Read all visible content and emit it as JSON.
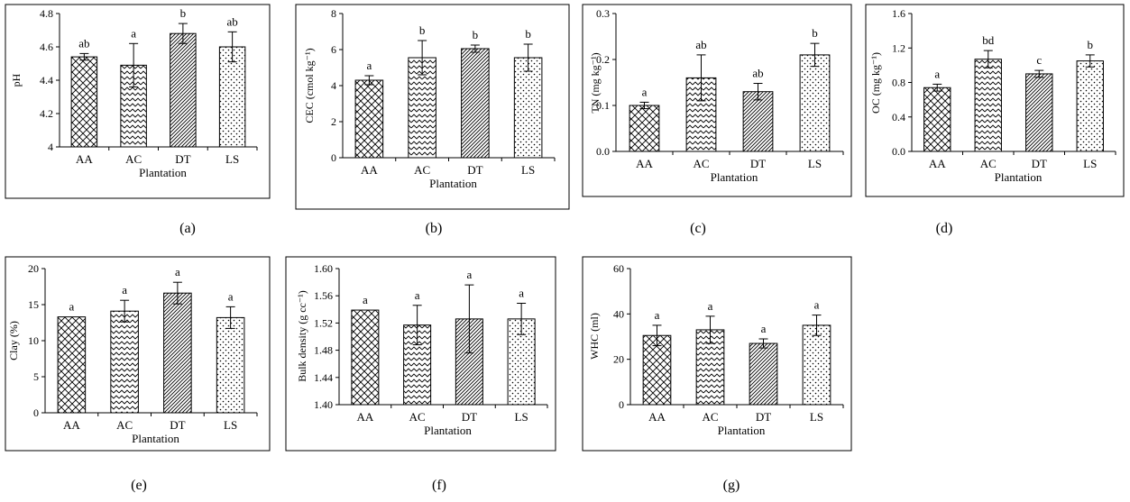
{
  "panel_labels": [
    "(a)",
    "(b)",
    "(c)",
    "(d)",
    "(e)",
    "(f)",
    "(g)"
  ],
  "chart_data": [
    {
      "type": "bar",
      "panel": "(a)",
      "categories": [
        "AA",
        "AC",
        "DT",
        "LS"
      ],
      "values": [
        4.54,
        4.49,
        4.68,
        4.6
      ],
      "errors": [
        0.02,
        0.13,
        0.06,
        0.09
      ],
      "letters": [
        "ab",
        "a",
        "b",
        "ab"
      ],
      "xlabel": "Plantation",
      "ylabel": "pH",
      "ylim": [
        4,
        4.8
      ],
      "yticks": [
        4,
        4.2,
        4.4,
        4.6,
        4.8
      ],
      "ytick_labels": [
        "4",
        "4.2",
        "4.4",
        "4.6",
        "4.8"
      ],
      "patterns": [
        "cross",
        "wave",
        "diag",
        "dots"
      ]
    },
    {
      "type": "bar",
      "panel": "(b)",
      "categories": [
        "AA",
        "AC",
        "DT",
        "LS"
      ],
      "values": [
        4.3,
        5.55,
        6.05,
        5.55
      ],
      "errors": [
        0.25,
        0.95,
        0.2,
        0.75
      ],
      "letters": [
        "a",
        "b",
        "b",
        "b"
      ],
      "xlabel": "Plantation",
      "ylabel": "CEC (cmol kg⁻¹)",
      "ylim": [
        0,
        8
      ],
      "yticks": [
        0,
        2,
        4,
        6,
        8
      ],
      "ytick_labels": [
        "0",
        "2",
        "4",
        "6",
        "8"
      ],
      "patterns": [
        "cross",
        "wave",
        "diag",
        "dots"
      ]
    },
    {
      "type": "bar",
      "panel": "(c)",
      "categories": [
        "AA",
        "AC",
        "DT",
        "LS"
      ],
      "values": [
        0.1,
        0.16,
        0.13,
        0.21
      ],
      "errors": [
        0.007,
        0.05,
        0.018,
        0.025
      ],
      "letters": [
        "a",
        "ab",
        "ab",
        "b"
      ],
      "xlabel": "Plantation",
      "ylabel": "TN (mg kg⁻¹)",
      "ylim": [
        0,
        0.3
      ],
      "yticks": [
        0,
        0.1,
        0.2,
        0.3
      ],
      "ytick_labels": [
        "0.0",
        "0.1",
        "0.2",
        "0.3"
      ],
      "patterns": [
        "cross",
        "wave",
        "diag",
        "dots"
      ]
    },
    {
      "type": "bar",
      "panel": "(d)",
      "categories": [
        "AA",
        "AC",
        "DT",
        "LS"
      ],
      "values": [
        0.74,
        1.07,
        0.9,
        1.05
      ],
      "errors": [
        0.04,
        0.1,
        0.04,
        0.07
      ],
      "letters": [
        "a",
        "bd",
        "c",
        "b"
      ],
      "xlabel": "Plantation",
      "ylabel": "OC (mg kg⁻¹)",
      "ylim": [
        0,
        1.6
      ],
      "yticks": [
        0,
        0.4,
        0.8,
        1.2,
        1.6
      ],
      "ytick_labels": [
        "0.0",
        "0.4",
        "0.8",
        "1.2",
        "1.6"
      ],
      "patterns": [
        "cross",
        "wave",
        "diag",
        "dots"
      ]
    },
    {
      "type": "bar",
      "panel": "(e)",
      "categories": [
        "AA",
        "AC",
        "DT",
        "LS"
      ],
      "values": [
        13.3,
        14.1,
        16.6,
        13.2
      ],
      "errors": [
        0,
        1.5,
        1.5,
        1.5
      ],
      "letters": [
        "a",
        "a",
        "a",
        "a"
      ],
      "xlabel": "Plantation",
      "ylabel": "Clay (%)",
      "ylim": [
        0,
        20
      ],
      "yticks": [
        0,
        5,
        10,
        15,
        20
      ],
      "ytick_labels": [
        "0",
        "5",
        "10",
        "15",
        "20"
      ],
      "patterns": [
        "cross",
        "wave",
        "diag",
        "dots"
      ]
    },
    {
      "type": "bar",
      "panel": "(f)",
      "categories": [
        "AA",
        "AC",
        "DT",
        "LS"
      ],
      "values": [
        1.539,
        1.517,
        1.526,
        1.526
      ],
      "errors": [
        0,
        0.029,
        0.05,
        0.023
      ],
      "letters": [
        "a",
        "a",
        "a",
        "a"
      ],
      "xlabel": "Plantation",
      "ylabel": "Bulk density (g cc⁻¹)",
      "ylim": [
        1.4,
        1.6
      ],
      "yticks": [
        1.4,
        1.44,
        1.48,
        1.52,
        1.56,
        1.6
      ],
      "ytick_labels": [
        "1.40",
        "1.44",
        "1.48",
        "1.52",
        "1.56",
        "1.60"
      ],
      "patterns": [
        "cross",
        "wave",
        "diag",
        "dots"
      ]
    },
    {
      "type": "bar",
      "panel": "(g)",
      "categories": [
        "AA",
        "AC",
        "DT",
        "LS"
      ],
      "values": [
        30.5,
        33,
        27,
        35
      ],
      "errors": [
        4.5,
        6,
        2,
        4.5
      ],
      "letters": [
        "a",
        "a",
        "a",
        "a"
      ],
      "xlabel": "Plantation",
      "ylabel": "WHC (ml)",
      "ylim": [
        0,
        60
      ],
      "yticks": [
        0,
        20,
        40,
        60
      ],
      "ytick_labels": [
        "0",
        "20",
        "40",
        "60"
      ],
      "patterns": [
        "cross",
        "wave",
        "diag",
        "dots"
      ]
    }
  ]
}
